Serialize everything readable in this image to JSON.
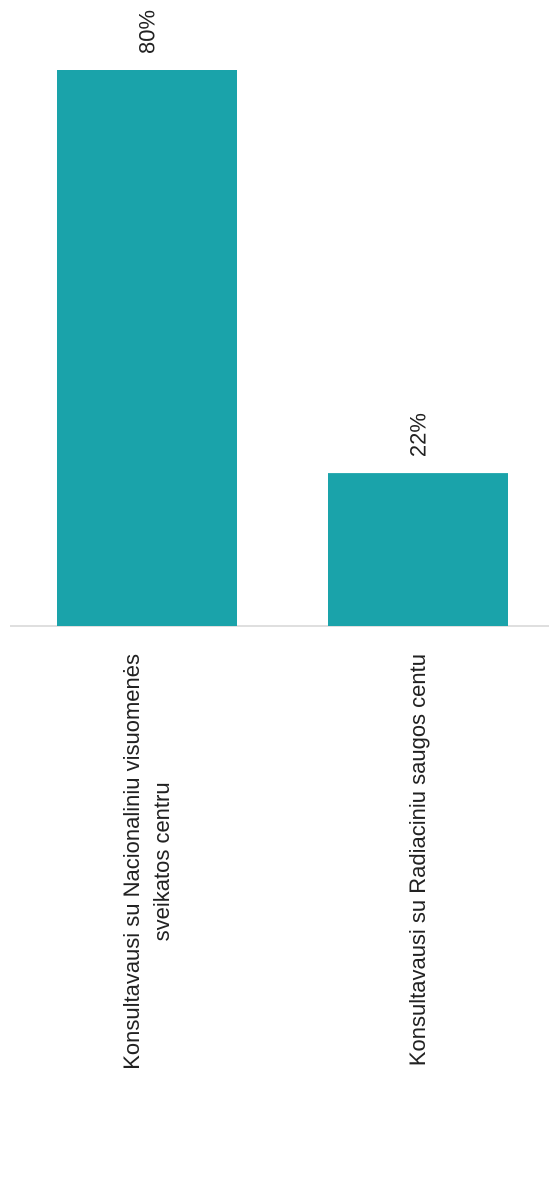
{
  "chart_data": {
    "type": "bar",
    "orientation": "vertical",
    "categories": [
      [
        "Konsultavausi su Nacionaliniu visuomenės",
        "sveikatos centru"
      ],
      [
        "Konsultavausi su Radiaciniu saugos centu"
      ]
    ],
    "values": [
      80,
      22
    ],
    "value_labels": [
      "80%",
      "22%"
    ],
    "ylim": [
      0,
      80
    ],
    "grid": false,
    "legend": "none",
    "colors": {
      "bar": "#1aa3aa",
      "baseline": "#bfbfbf",
      "text": "#222222"
    }
  }
}
